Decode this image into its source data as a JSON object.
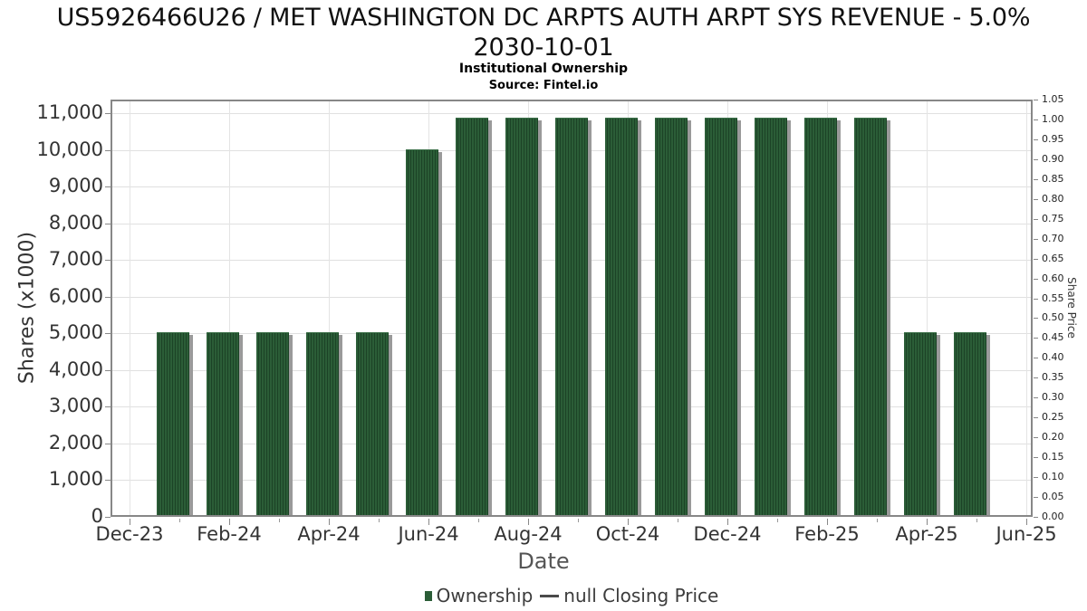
{
  "chart_data": {
    "type": "bar",
    "title_line1": "US5926466U26 / MET WASHINGTON DC ARPTS AUTH ARPT SYS REVENUE - 5.0%",
    "title_line2": "2030-10-01",
    "subtitle": "Institutional Ownership",
    "source": "Source: Fintel.io",
    "xlabel": "Date",
    "ylabel_left": "Shares (x1000)",
    "ylabel_right": "Share Price",
    "categories": [
      "Jan-24",
      "Feb-24",
      "Mar-24",
      "Apr-24",
      "May-24",
      "Jun-24",
      "Jul-24",
      "Aug-24",
      "Sep-24",
      "Oct-24",
      "Nov-24",
      "Dec-24",
      "Jan-25",
      "Feb-25",
      "Mar-25",
      "Apr-25",
      "May-25"
    ],
    "series": [
      {
        "name": "Ownership",
        "color": "#2b5d37",
        "values": [
          5000,
          5000,
          5000,
          5000,
          5000,
          10000,
          10850,
          10850,
          10850,
          10850,
          10850,
          10850,
          10850,
          10850,
          10850,
          5000,
          5000
        ]
      }
    ],
    "overlay_line_series": {
      "name": "null Closing Price",
      "values": []
    },
    "x_axis_major_ticks": [
      "Dec-23",
      "Feb-24",
      "Apr-24",
      "Jun-24",
      "Aug-24",
      "Oct-24",
      "Dec-24",
      "Feb-25",
      "Apr-25",
      "Jun-25"
    ],
    "y_ticks_left": [
      0,
      1000,
      2000,
      3000,
      4000,
      5000,
      6000,
      7000,
      8000,
      9000,
      10000,
      11000
    ],
    "y_ticks_right": [
      0.0,
      0.05,
      0.1,
      0.15,
      0.2,
      0.25,
      0.3,
      0.35,
      0.4,
      0.45,
      0.5,
      0.55,
      0.6,
      0.65,
      0.7,
      0.75,
      0.8,
      0.85,
      0.9,
      0.95,
      1.0,
      1.05
    ],
    "ylim_left": [
      0,
      11380
    ],
    "ylim_right": [
      0,
      1.05
    ],
    "grid": true,
    "legend_position": "bottom",
    "legend": [
      {
        "label": "Ownership",
        "marker": "square",
        "color": "#2b5d37"
      },
      {
        "label": "null Closing Price",
        "marker": "line",
        "color": "#4a4a4a"
      }
    ]
  }
}
